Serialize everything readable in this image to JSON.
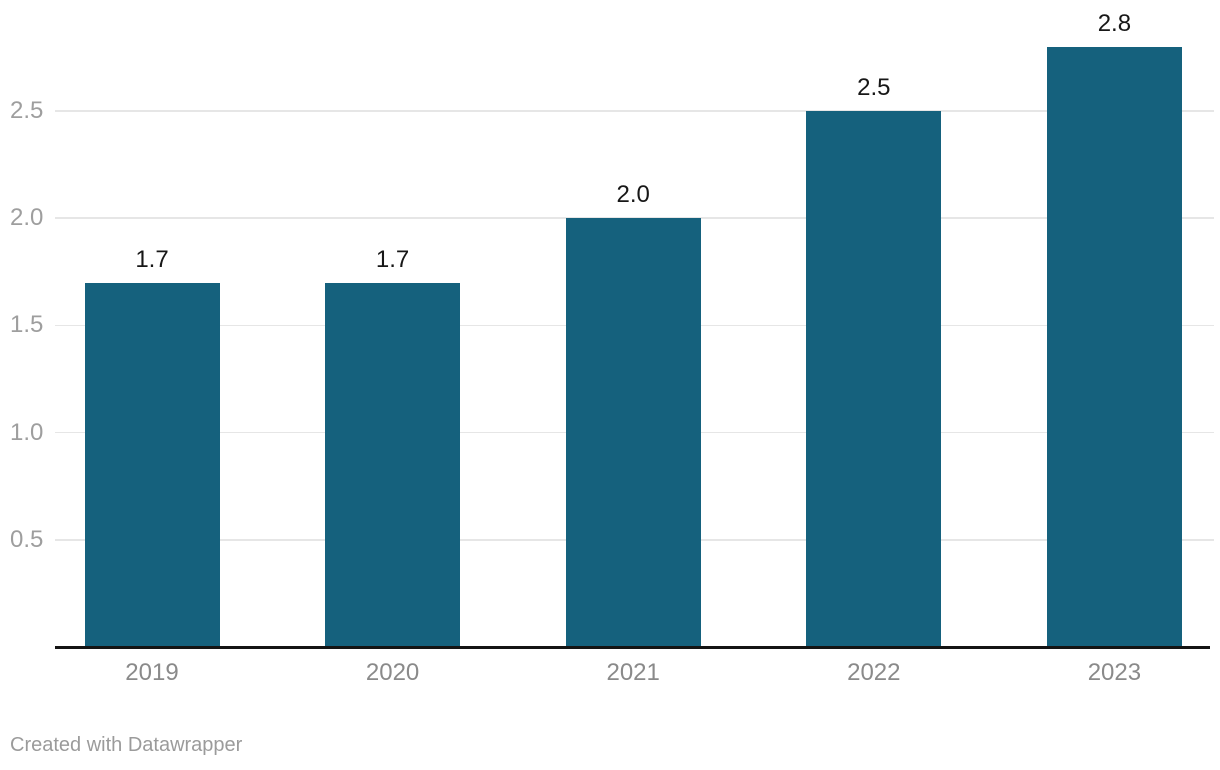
{
  "chart_data": {
    "type": "bar",
    "categories": [
      "2019",
      "2020",
      "2021",
      "2022",
      "2023"
    ],
    "values": [
      1.7,
      1.7,
      2.0,
      2.5,
      2.8
    ],
    "value_labels": [
      "1.7",
      "1.7",
      "2.0",
      "2.5",
      "2.8"
    ],
    "y_ticks": [
      0.5,
      1.0,
      1.5,
      2.0,
      2.5
    ],
    "y_tick_labels": [
      "0.5",
      "1.0",
      "1.5",
      "2.0",
      "2.5"
    ],
    "ylim": [
      0,
      2.95
    ],
    "title": "",
    "xlabel": "",
    "ylabel": "",
    "grid": "horizontal",
    "legend": "none"
  },
  "colors": {
    "bar": "#15617d",
    "gridline": "#e6e6e6",
    "axis_line": "#141414",
    "value_label": "#171717",
    "x_label": "#8a8a8a",
    "y_label": "#9e9e9e",
    "footer": "#9b9b9b",
    "background": "#ffffff"
  },
  "footer": {
    "attribution": "Created with Datawrapper"
  }
}
